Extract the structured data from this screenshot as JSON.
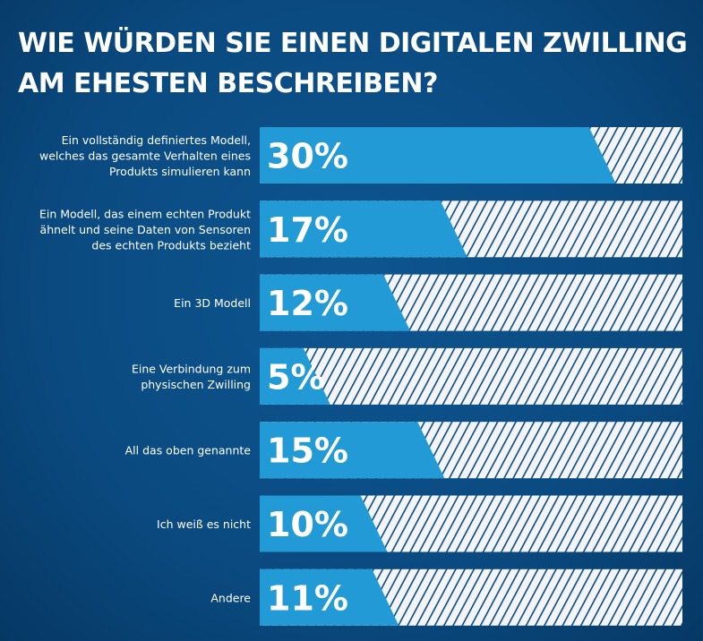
{
  "chart_data": {
    "type": "bar",
    "orientation": "horizontal",
    "title": "WIE WÜRDEN SIE EINEN DIGITALEN ZWILLING AM EHESTEN BESCHREIBEN?",
    "categories": [
      "Ein vollständig definiertes Modell,\nwelches das gesamte Verhalten eines\nProdukts simulieren kann",
      "Ein Modell, das einem echten Produkt\nähnelt und seine Daten von Sensoren\ndes echten Produkts bezieht",
      "Ein 3D Modell",
      "Eine Verbindung zum\nphysischen Zwilling",
      "All das oben genannte",
      "Ich weiß es nicht",
      "Andere"
    ],
    "values": [
      30,
      17,
      12,
      5,
      15,
      10,
      11
    ],
    "value_labels": [
      "30%",
      "17%",
      "12%",
      "5%",
      "15%",
      "10%",
      "11%"
    ],
    "unit": "%",
    "xlim": [
      0,
      37
    ],
    "grid": false,
    "colors": {
      "background": "#0a4a80",
      "bar": "#219ad6",
      "remainder": "#f2f4f7",
      "hatch": "#0a4a80",
      "text": "#ffffff"
    }
  }
}
